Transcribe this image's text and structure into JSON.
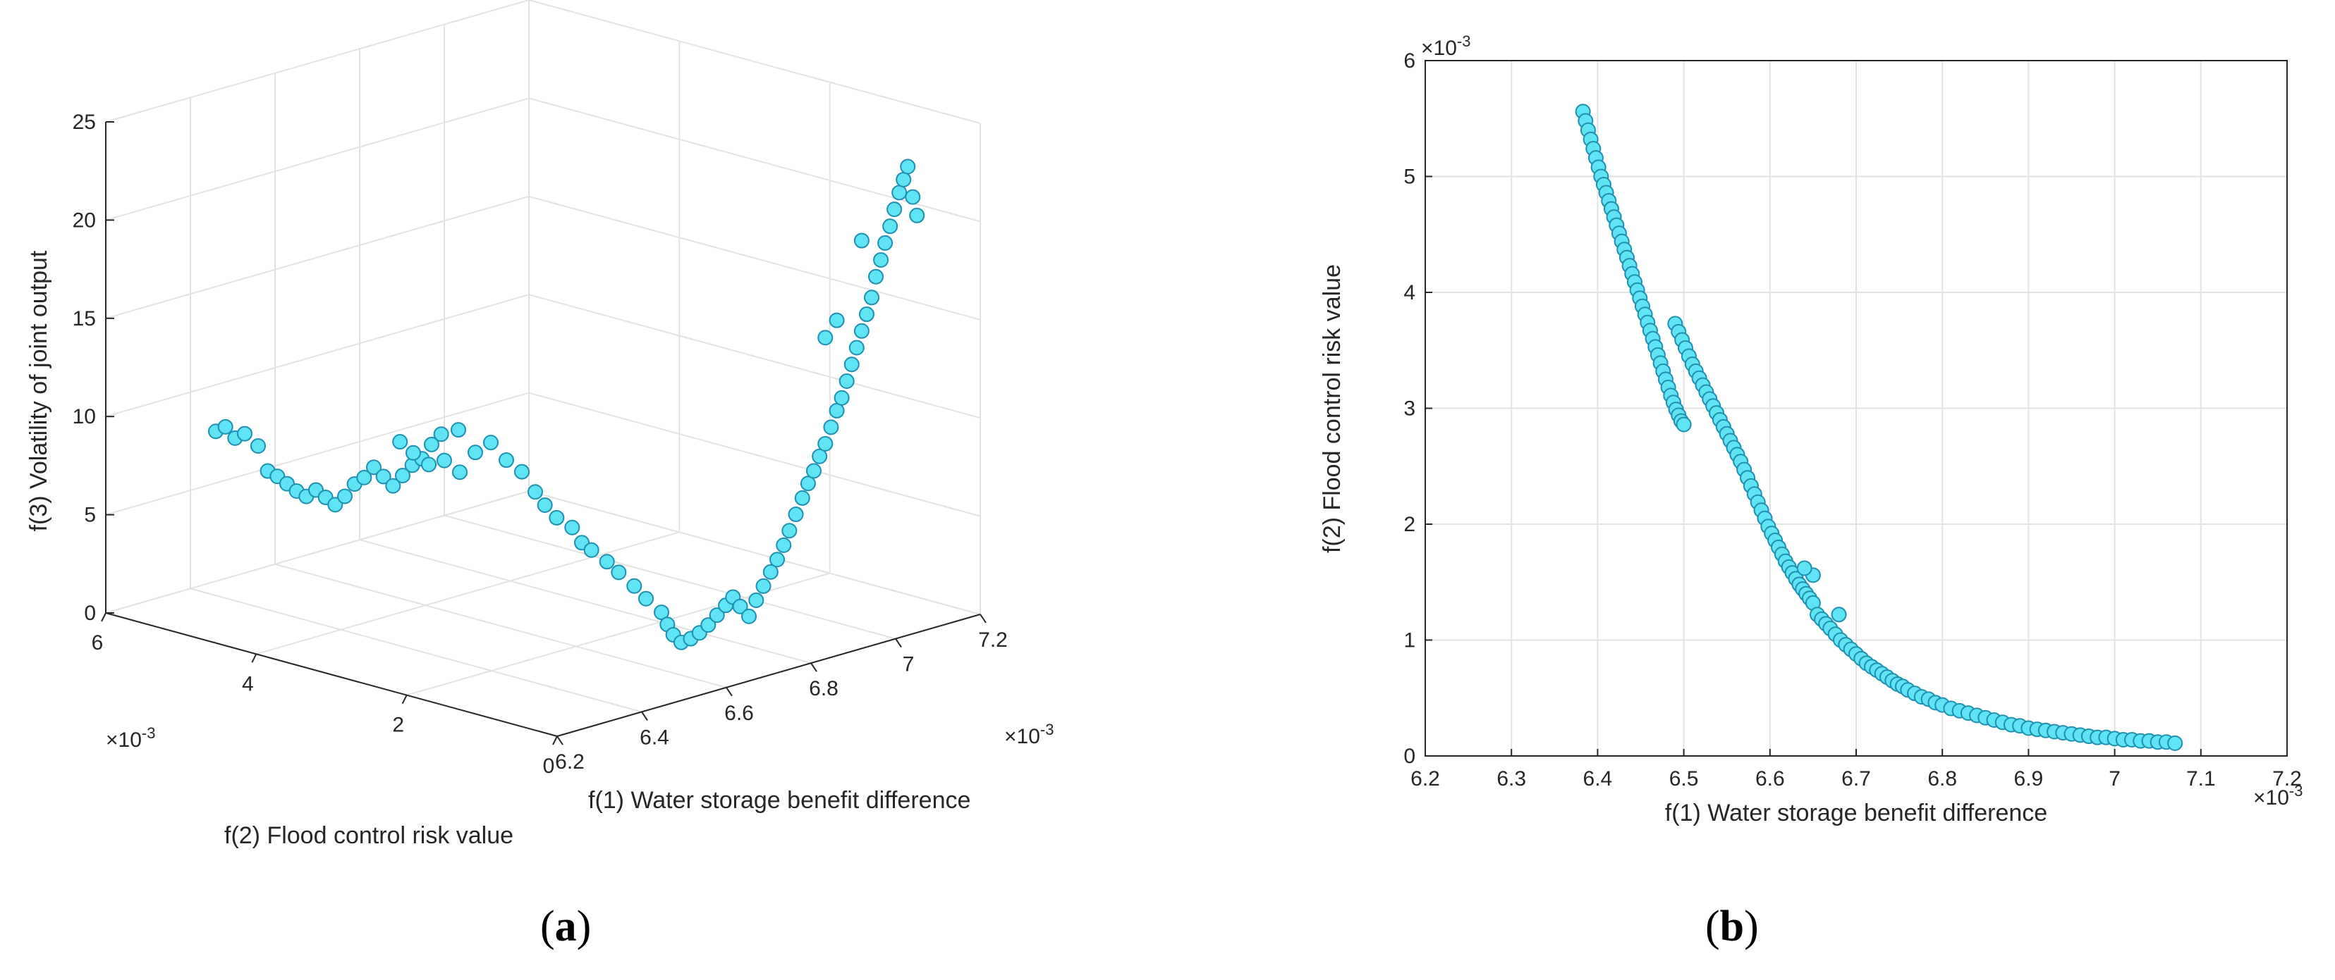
{
  "figure": {
    "panel_a_label": "a",
    "panel_b_label": "b",
    "open_paren": "(",
    "close_paren": ")"
  },
  "colors": {
    "marker_fill": "#5ee4f4",
    "marker_edge": "#1f8fb0",
    "axis": "#262626",
    "grid": "#e2e2e2"
  },
  "chart_data": [
    {
      "type": "scatter3d",
      "panel": "a",
      "title": "",
      "xlabel": "f(1) Water storage benefit difference",
      "ylabel": "f(2) Flood control risk value",
      "zlabel": "f(3) Volatility of joint output",
      "x_exponent_label": "×10",
      "x_exponent_power": "-3",
      "y_exponent_label": "×10",
      "y_exponent_power": "-3",
      "xlim": [
        6.2,
        7.2
      ],
      "ylim": [
        0,
        6
      ],
      "zlim": [
        0,
        25
      ],
      "x_ticks": [
        6.2,
        6.4,
        6.6,
        6.8,
        7,
        7.2
      ],
      "x_tick_labels": [
        "6.2",
        "6.4",
        "6.6",
        "6.8",
        "7",
        "7.2"
      ],
      "y_ticks": [
        0,
        2,
        4,
        6
      ],
      "y_tick_labels": [
        "0",
        "2",
        "4",
        "6"
      ],
      "z_ticks": [
        0,
        5,
        10,
        15,
        20,
        25
      ],
      "z_tick_labels": [
        "0",
        "5",
        "10",
        "15",
        "20",
        "25"
      ],
      "grid": true,
      "points": [
        [
          6.38,
          5.55,
          8.6
        ],
        [
          6.385,
          5.45,
          8.9
        ],
        [
          6.39,
          5.35,
          8.4
        ],
        [
          6.395,
          5.25,
          8.7
        ],
        [
          6.4,
          5.1,
          8.2
        ],
        [
          6.405,
          5.0,
          7.0
        ],
        [
          6.41,
          4.9,
          6.8
        ],
        [
          6.415,
          4.8,
          6.5
        ],
        [
          6.42,
          4.7,
          6.2
        ],
        [
          6.425,
          4.6,
          6.0
        ],
        [
          6.43,
          4.5,
          6.4
        ],
        [
          6.435,
          4.4,
          6.1
        ],
        [
          6.44,
          4.3,
          5.8
        ],
        [
          6.445,
          4.2,
          6.3
        ],
        [
          6.45,
          4.1,
          7.0
        ],
        [
          6.455,
          4.0,
          7.4
        ],
        [
          6.46,
          3.9,
          8.0
        ],
        [
          6.465,
          3.8,
          7.6
        ],
        [
          6.47,
          3.7,
          7.2
        ],
        [
          6.475,
          3.6,
          7.8
        ],
        [
          6.48,
          3.5,
          8.4
        ],
        [
          6.485,
          3.4,
          8.8
        ],
        [
          6.49,
          3.3,
          9.6
        ],
        [
          6.495,
          3.2,
          10.2
        ],
        [
          6.5,
          3.0,
          10.6
        ],
        [
          6.49,
          3.72,
          9.3
        ],
        [
          6.5,
          3.6,
          8.8
        ],
        [
          6.51,
          3.45,
          8.3
        ],
        [
          6.52,
          3.3,
          8.6
        ],
        [
          6.53,
          3.15,
          8.1
        ],
        [
          6.54,
          3.0,
          9.2
        ],
        [
          6.55,
          2.85,
          9.8
        ],
        [
          6.56,
          2.7,
          9.0
        ],
        [
          6.57,
          2.55,
          8.5
        ],
        [
          6.575,
          2.4,
          7.6
        ],
        [
          6.58,
          2.3,
          7.0
        ],
        [
          6.59,
          2.2,
          6.4
        ],
        [
          6.6,
          2.05,
          6.0
        ],
        [
          6.605,
          1.95,
          5.3
        ],
        [
          6.61,
          1.85,
          5.0
        ],
        [
          6.62,
          1.7,
          4.5
        ],
        [
          6.63,
          1.6,
          4.0
        ],
        [
          6.64,
          1.45,
          3.4
        ],
        [
          6.65,
          1.35,
          2.8
        ],
        [
          6.66,
          1.2,
          2.2
        ],
        [
          6.665,
          1.15,
          1.6
        ],
        [
          6.67,
          1.1,
          1.1
        ],
        [
          6.68,
          1.05,
          0.7
        ],
        [
          6.69,
          0.98,
          0.9
        ],
        [
          6.7,
          0.92,
          1.2
        ],
        [
          6.71,
          0.86,
          1.6
        ],
        [
          6.72,
          0.8,
          2.1
        ],
        [
          6.73,
          0.74,
          2.6
        ],
        [
          6.74,
          0.7,
          3.0
        ],
        [
          6.75,
          0.66,
          2.5
        ],
        [
          6.76,
          0.6,
          2.0
        ],
        [
          6.77,
          0.56,
          2.8
        ],
        [
          6.78,
          0.52,
          3.5
        ],
        [
          6.79,
          0.48,
          4.2
        ],
        [
          6.8,
          0.45,
          4.8
        ],
        [
          6.81,
          0.42,
          5.5
        ],
        [
          6.82,
          0.4,
          6.2
        ],
        [
          6.83,
          0.37,
          7.0
        ],
        [
          6.84,
          0.34,
          7.8
        ],
        [
          6.85,
          0.32,
          8.5
        ],
        [
          6.86,
          0.3,
          9.1
        ],
        [
          6.87,
          0.28,
          9.8
        ],
        [
          6.88,
          0.26,
          10.4
        ],
        [
          6.89,
          0.24,
          11.2
        ],
        [
          6.9,
          0.22,
          12.0
        ],
        [
          6.91,
          0.21,
          12.6
        ],
        [
          6.92,
          0.2,
          13.4
        ],
        [
          6.93,
          0.19,
          14.2
        ],
        [
          6.94,
          0.18,
          15.0
        ],
        [
          6.95,
          0.17,
          15.8
        ],
        [
          6.96,
          0.16,
          16.6
        ],
        [
          6.97,
          0.15,
          17.4
        ],
        [
          6.98,
          0.15,
          18.4
        ],
        [
          6.99,
          0.14,
          19.2
        ],
        [
          7.0,
          0.14,
          20.0
        ],
        [
          7.01,
          0.13,
          20.8
        ],
        [
          7.02,
          0.13,
          21.6
        ],
        [
          7.03,
          0.12,
          22.4
        ],
        [
          7.04,
          0.12,
          23.0
        ],
        [
          7.05,
          0.12,
          23.6
        ],
        [
          7.06,
          0.11,
          22.0
        ],
        [
          7.07,
          0.11,
          21.0
        ],
        [
          6.88,
          0.26,
          15.8
        ],
        [
          6.9,
          0.22,
          16.6
        ],
        [
          6.95,
          0.17,
          20.4
        ]
      ]
    },
    {
      "type": "scatter",
      "panel": "b",
      "title": "",
      "xlabel": "f(1) Water storage benefit difference",
      "ylabel": "f(2) Flood control risk value",
      "x_exponent_label": "×10",
      "x_exponent_power": "-3",
      "y_exponent_label": "×10",
      "y_exponent_power": "-3",
      "xlim": [
        6.2,
        7.2
      ],
      "ylim": [
        0,
        6
      ],
      "x_ticks": [
        6.2,
        6.3,
        6.4,
        6.5,
        6.6,
        6.7,
        6.8,
        6.9,
        7.0,
        7.1,
        7.2
      ],
      "x_tick_labels": [
        "6.2",
        "6.3",
        "6.4",
        "6.5",
        "6.6",
        "6.7",
        "6.8",
        "6.9",
        "7",
        "7.1",
        "7.2"
      ],
      "y_ticks": [
        0,
        1,
        2,
        3,
        4,
        5,
        6
      ],
      "y_tick_labels": [
        "0",
        "1",
        "2",
        "3",
        "4",
        "5",
        "6"
      ],
      "grid": true,
      "points": [
        [
          6.383,
          5.56
        ],
        [
          6.386,
          5.48
        ],
        [
          6.389,
          5.4
        ],
        [
          6.392,
          5.32
        ],
        [
          6.395,
          5.24
        ],
        [
          6.398,
          5.16
        ],
        [
          6.401,
          5.08
        ],
        [
          6.404,
          5.0
        ],
        [
          6.407,
          4.93
        ],
        [
          6.41,
          4.86
        ],
        [
          6.413,
          4.79
        ],
        [
          6.416,
          4.72
        ],
        [
          6.419,
          4.65
        ],
        [
          6.422,
          4.58
        ],
        [
          6.425,
          4.51
        ],
        [
          6.428,
          4.44
        ],
        [
          6.431,
          4.37
        ],
        [
          6.434,
          4.3
        ],
        [
          6.437,
          4.23
        ],
        [
          6.44,
          4.16
        ],
        [
          6.443,
          4.09
        ],
        [
          6.446,
          4.02
        ],
        [
          6.449,
          3.95
        ],
        [
          6.452,
          3.88
        ],
        [
          6.455,
          3.81
        ],
        [
          6.458,
          3.74
        ],
        [
          6.461,
          3.67
        ],
        [
          6.464,
          3.6
        ],
        [
          6.467,
          3.53
        ],
        [
          6.47,
          3.46
        ],
        [
          6.473,
          3.39
        ],
        [
          6.476,
          3.32
        ],
        [
          6.479,
          3.25
        ],
        [
          6.482,
          3.18
        ],
        [
          6.485,
          3.11
        ],
        [
          6.488,
          3.05
        ],
        [
          6.491,
          2.99
        ],
        [
          6.494,
          2.94
        ],
        [
          6.497,
          2.89
        ],
        [
          6.5,
          2.86
        ],
        [
          6.49,
          3.73
        ],
        [
          6.494,
          3.66
        ],
        [
          6.498,
          3.59
        ],
        [
          6.502,
          3.52
        ],
        [
          6.506,
          3.45
        ],
        [
          6.51,
          3.38
        ],
        [
          6.514,
          3.32
        ],
        [
          6.518,
          3.26
        ],
        [
          6.522,
          3.2
        ],
        [
          6.526,
          3.14
        ],
        [
          6.53,
          3.08
        ],
        [
          6.534,
          3.02
        ],
        [
          6.538,
          2.96
        ],
        [
          6.542,
          2.9
        ],
        [
          6.546,
          2.84
        ],
        [
          6.55,
          2.78
        ],
        [
          6.554,
          2.72
        ],
        [
          6.558,
          2.66
        ],
        [
          6.562,
          2.6
        ],
        [
          6.566,
          2.54
        ],
        [
          6.57,
          2.47
        ],
        [
          6.574,
          2.4
        ],
        [
          6.578,
          2.33
        ],
        [
          6.582,
          2.26
        ],
        [
          6.586,
          2.19
        ],
        [
          6.59,
          2.12
        ],
        [
          6.594,
          2.05
        ],
        [
          6.598,
          1.98
        ],
        [
          6.602,
          1.92
        ],
        [
          6.606,
          1.86
        ],
        [
          6.61,
          1.8
        ],
        [
          6.614,
          1.74
        ],
        [
          6.618,
          1.68
        ],
        [
          6.622,
          1.63
        ],
        [
          6.626,
          1.58
        ],
        [
          6.63,
          1.53
        ],
        [
          6.634,
          1.48
        ],
        [
          6.638,
          1.44
        ],
        [
          6.642,
          1.4
        ],
        [
          6.646,
          1.36
        ],
        [
          6.65,
          1.32
        ],
        [
          6.655,
          1.22
        ],
        [
          6.66,
          1.18
        ],
        [
          6.665,
          1.14
        ],
        [
          6.67,
          1.1
        ],
        [
          6.676,
          1.05
        ],
        [
          6.682,
          1.0
        ],
        [
          6.688,
          0.96
        ],
        [
          6.694,
          0.92
        ],
        [
          6.7,
          0.88
        ],
        [
          6.706,
          0.84
        ],
        [
          6.712,
          0.8
        ],
        [
          6.718,
          0.77
        ],
        [
          6.724,
          0.74
        ],
        [
          6.73,
          0.71
        ],
        [
          6.736,
          0.68
        ],
        [
          6.742,
          0.65
        ],
        [
          6.748,
          0.62
        ],
        [
          6.754,
          0.6
        ],
        [
          6.76,
          0.57
        ],
        [
          6.768,
          0.54
        ],
        [
          6.776,
          0.51
        ],
        [
          6.784,
          0.49
        ],
        [
          6.792,
          0.46
        ],
        [
          6.8,
          0.44
        ],
        [
          6.81,
          0.41
        ],
        [
          6.82,
          0.39
        ],
        [
          6.83,
          0.37
        ],
        [
          6.84,
          0.35
        ],
        [
          6.85,
          0.33
        ],
        [
          6.86,
          0.31
        ],
        [
          6.87,
          0.29
        ],
        [
          6.88,
          0.27
        ],
        [
          6.89,
          0.26
        ],
        [
          6.9,
          0.24
        ],
        [
          6.91,
          0.23
        ],
        [
          6.92,
          0.22
        ],
        [
          6.93,
          0.21
        ],
        [
          6.94,
          0.2
        ],
        [
          6.95,
          0.19
        ],
        [
          6.96,
          0.18
        ],
        [
          6.97,
          0.17
        ],
        [
          6.98,
          0.16
        ],
        [
          6.99,
          0.16
        ],
        [
          7.0,
          0.15
        ],
        [
          7.01,
          0.14
        ],
        [
          7.02,
          0.14
        ],
        [
          7.03,
          0.13
        ],
        [
          7.04,
          0.13
        ],
        [
          7.05,
          0.12
        ],
        [
          7.06,
          0.12
        ],
        [
          7.07,
          0.11
        ],
        [
          6.68,
          1.22
        ],
        [
          6.65,
          1.56
        ],
        [
          6.64,
          1.62
        ]
      ]
    }
  ]
}
